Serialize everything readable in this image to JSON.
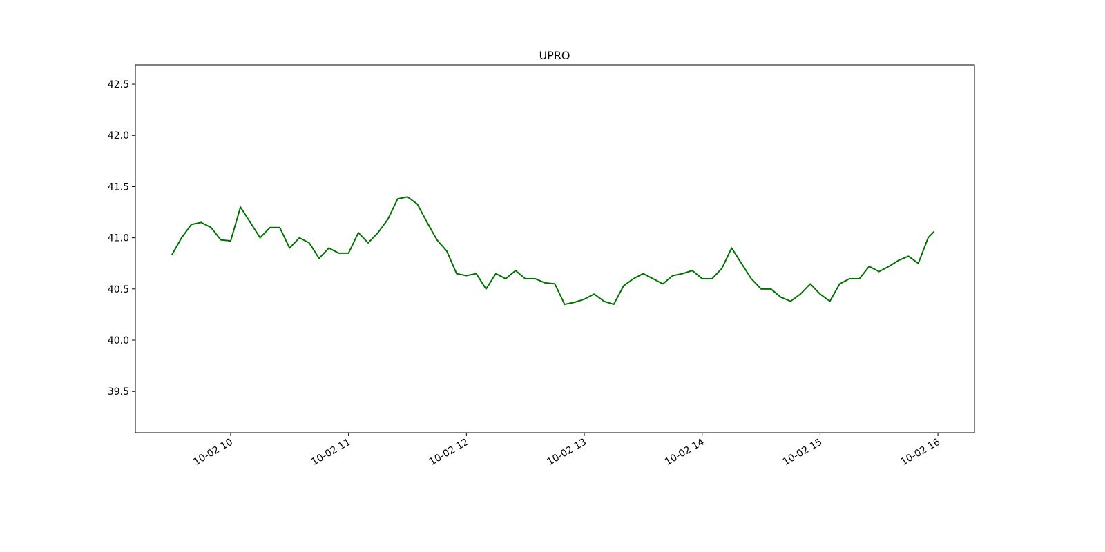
{
  "chart_data": {
    "type": "line",
    "title": "UPRO",
    "x": [
      570,
      575,
      580,
      585,
      590,
      595,
      600,
      605,
      610,
      615,
      620,
      625,
      630,
      635,
      640,
      645,
      650,
      655,
      660,
      665,
      670,
      675,
      680,
      685,
      690,
      695,
      700,
      705,
      710,
      715,
      720,
      725,
      730,
      735,
      740,
      745,
      750,
      755,
      760,
      765,
      770,
      775,
      780,
      785,
      790,
      795,
      800,
      805,
      810,
      815,
      820,
      825,
      830,
      835,
      840,
      845,
      850,
      855,
      860,
      865,
      870,
      875,
      880,
      885,
      890,
      895,
      900,
      905,
      910,
      915,
      920,
      925,
      930,
      935,
      940,
      945,
      950,
      955,
      958
    ],
    "series": [
      {
        "name": "UPRO",
        "color": "#007000",
        "values": [
          40.83,
          41.0,
          41.13,
          41.15,
          41.1,
          40.98,
          40.97,
          41.3,
          41.15,
          41.0,
          41.1,
          41.1,
          40.9,
          41.0,
          40.95,
          40.8,
          40.9,
          40.85,
          40.85,
          41.05,
          40.95,
          41.05,
          41.18,
          41.38,
          41.4,
          41.33,
          41.15,
          40.98,
          40.87,
          40.65,
          40.63,
          40.65,
          40.5,
          40.65,
          40.6,
          40.68,
          40.6,
          40.6,
          40.56,
          40.55,
          40.35,
          40.37,
          40.4,
          40.45,
          40.38,
          40.35,
          40.53,
          40.6,
          40.65,
          40.6,
          40.55,
          40.63,
          40.65,
          40.68,
          40.6,
          40.6,
          40.7,
          40.9,
          40.75,
          40.6,
          40.5,
          40.5,
          40.42,
          40.38,
          40.45,
          40.55,
          40.45,
          40.38,
          40.55,
          40.6,
          40.6,
          40.72,
          40.67,
          40.72,
          40.78,
          40.82,
          40.75,
          41.0,
          41.06
        ]
      }
    ],
    "xlim": [
      551.5,
      978.6
    ],
    "xticks": [
      {
        "value": 600,
        "label": "10-02 10"
      },
      {
        "value": 660,
        "label": "10-02 11"
      },
      {
        "value": 720,
        "label": "10-02 12"
      },
      {
        "value": 780,
        "label": "10-02 13"
      },
      {
        "value": 840,
        "label": "10-02 14"
      },
      {
        "value": 900,
        "label": "10-02 15"
      },
      {
        "value": 960,
        "label": "10-02 16"
      }
    ],
    "ylim": [
      39.097,
      42.689
    ],
    "yticks": [
      {
        "value": 39.5,
        "label": "39.5"
      },
      {
        "value": 40.0,
        "label": "40.0"
      },
      {
        "value": 40.5,
        "label": "40.5"
      },
      {
        "value": 41.0,
        "label": "41.0"
      },
      {
        "value": 41.5,
        "label": "41.5"
      },
      {
        "value": 42.0,
        "label": "42.0"
      },
      {
        "value": 42.5,
        "label": "42.5"
      }
    ],
    "grid": false
  }
}
